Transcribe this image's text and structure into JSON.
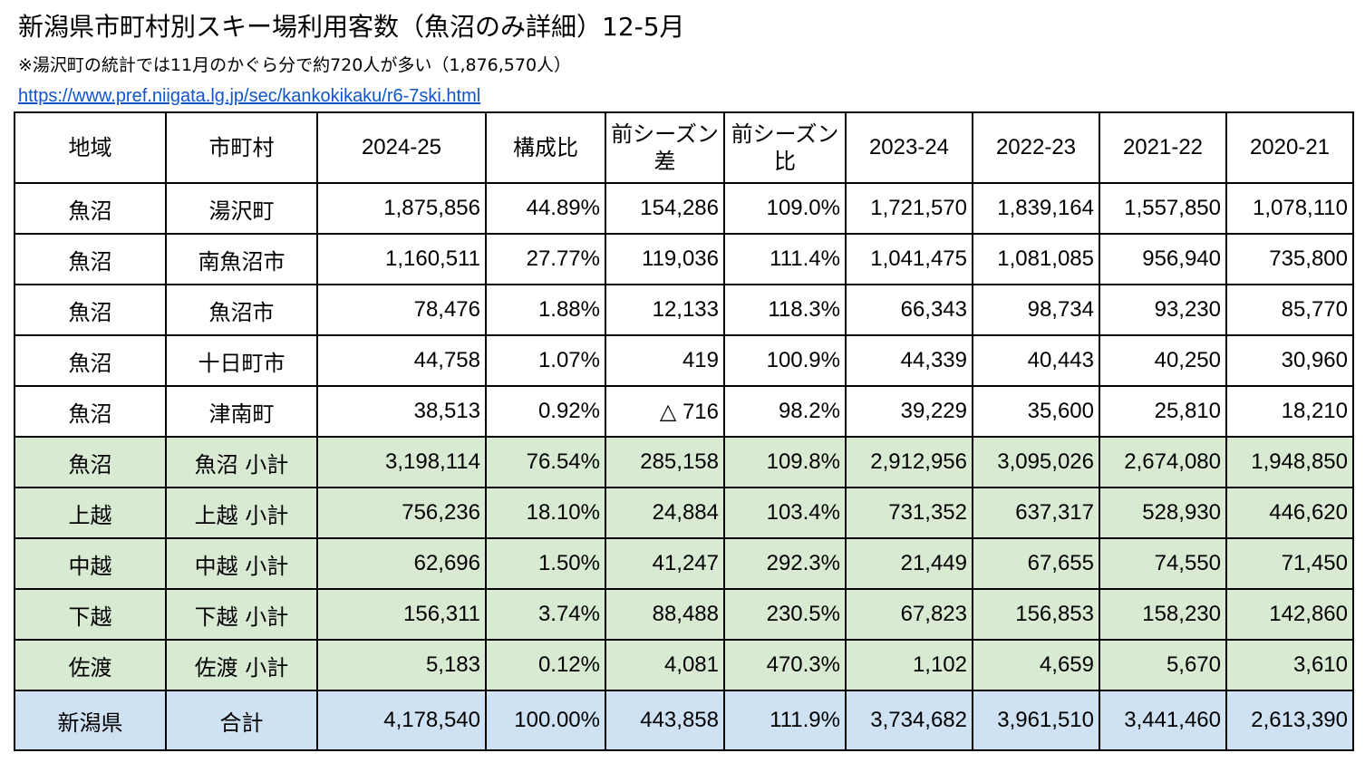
{
  "header": {
    "title": "新潟県市町村別スキー場利用客数（魚沼のみ詳細）12-5月",
    "note": "※湯沢町の統計では11月のかぐら分で約720人が多い（1,876,570人）",
    "link": "https://www.pref.niigata.lg.jp/sec/kankokikaku/r6-7ski.html"
  },
  "table": {
    "columns": [
      "地域",
      "市町村",
      "2024-25",
      "構成比",
      "前シーズン差",
      "前シーズン比",
      "2023-24",
      "2022-23",
      "2021-22",
      "2020-21"
    ],
    "rows": [
      {
        "region": "魚沼",
        "city": "湯沢町",
        "v2425": "1,875,856",
        "share": "44.89%",
        "diff": "154,286",
        "ratio": "109.0%",
        "v2324": "1,721,570",
        "v2223": "1,839,164",
        "v2122": "1,557,850",
        "v2021": "1,078,110"
      },
      {
        "region": "魚沼",
        "city": "南魚沼市",
        "v2425": "1,160,511",
        "share": "27.77%",
        "diff": "119,036",
        "ratio": "111.4%",
        "v2324": "1,041,475",
        "v2223": "1,081,085",
        "v2122": "956,940",
        "v2021": "735,800"
      },
      {
        "region": "魚沼",
        "city": "魚沼市",
        "v2425": "78,476",
        "share": "1.88%",
        "diff": "12,133",
        "ratio": "118.3%",
        "v2324": "66,343",
        "v2223": "98,734",
        "v2122": "93,230",
        "v2021": "85,770"
      },
      {
        "region": "魚沼",
        "city": "十日町市",
        "v2425": "44,758",
        "share": "1.07%",
        "diff": "419",
        "ratio": "100.9%",
        "v2324": "44,339",
        "v2223": "40,443",
        "v2122": "40,250",
        "v2021": "30,960"
      },
      {
        "region": "魚沼",
        "city": "津南町",
        "v2425": "38,513",
        "share": "0.92%",
        "diff": "△ 716",
        "ratio": "98.2%",
        "v2324": "39,229",
        "v2223": "35,600",
        "v2122": "25,810",
        "v2021": "18,210"
      },
      {
        "region": "魚沼",
        "city": "魚沼 小計",
        "v2425": "3,198,114",
        "share": "76.54%",
        "diff": "285,158",
        "ratio": "109.8%",
        "v2324": "2,912,956",
        "v2223": "3,095,026",
        "v2122": "2,674,080",
        "v2021": "1,948,850"
      },
      {
        "region": "上越",
        "city": "上越 小計",
        "v2425": "756,236",
        "share": "18.10%",
        "diff": "24,884",
        "ratio": "103.4%",
        "v2324": "731,352",
        "v2223": "637,317",
        "v2122": "528,930",
        "v2021": "446,620"
      },
      {
        "region": "中越",
        "city": "中越 小計",
        "v2425": "62,696",
        "share": "1.50%",
        "diff": "41,247",
        "ratio": "292.3%",
        "v2324": "21,449",
        "v2223": "67,655",
        "v2122": "74,550",
        "v2021": "71,450"
      },
      {
        "region": "下越",
        "city": "下越 小計",
        "v2425": "156,311",
        "share": "3.74%",
        "diff": "88,488",
        "ratio": "230.5%",
        "v2324": "67,823",
        "v2223": "156,853",
        "v2122": "158,230",
        "v2021": "142,860"
      },
      {
        "region": "佐渡",
        "city": "佐渡 小計",
        "v2425": "5,183",
        "share": "0.12%",
        "diff": "4,081",
        "ratio": "470.3%",
        "v2324": "1,102",
        "v2223": "4,659",
        "v2122": "5,670",
        "v2021": "3,610"
      },
      {
        "region": "新潟県",
        "city": "合計",
        "v2425": "4,178,540",
        "share": "100.00%",
        "diff": "443,858",
        "ratio": "111.9%",
        "v2324": "3,734,682",
        "v2223": "3,961,510",
        "v2122": "3,441,460",
        "v2021": "2,613,390"
      }
    ]
  },
  "colors": {
    "subtotal_row": "#d9ead3",
    "total_row": "#cfe2f3",
    "link": "#1155cc"
  }
}
